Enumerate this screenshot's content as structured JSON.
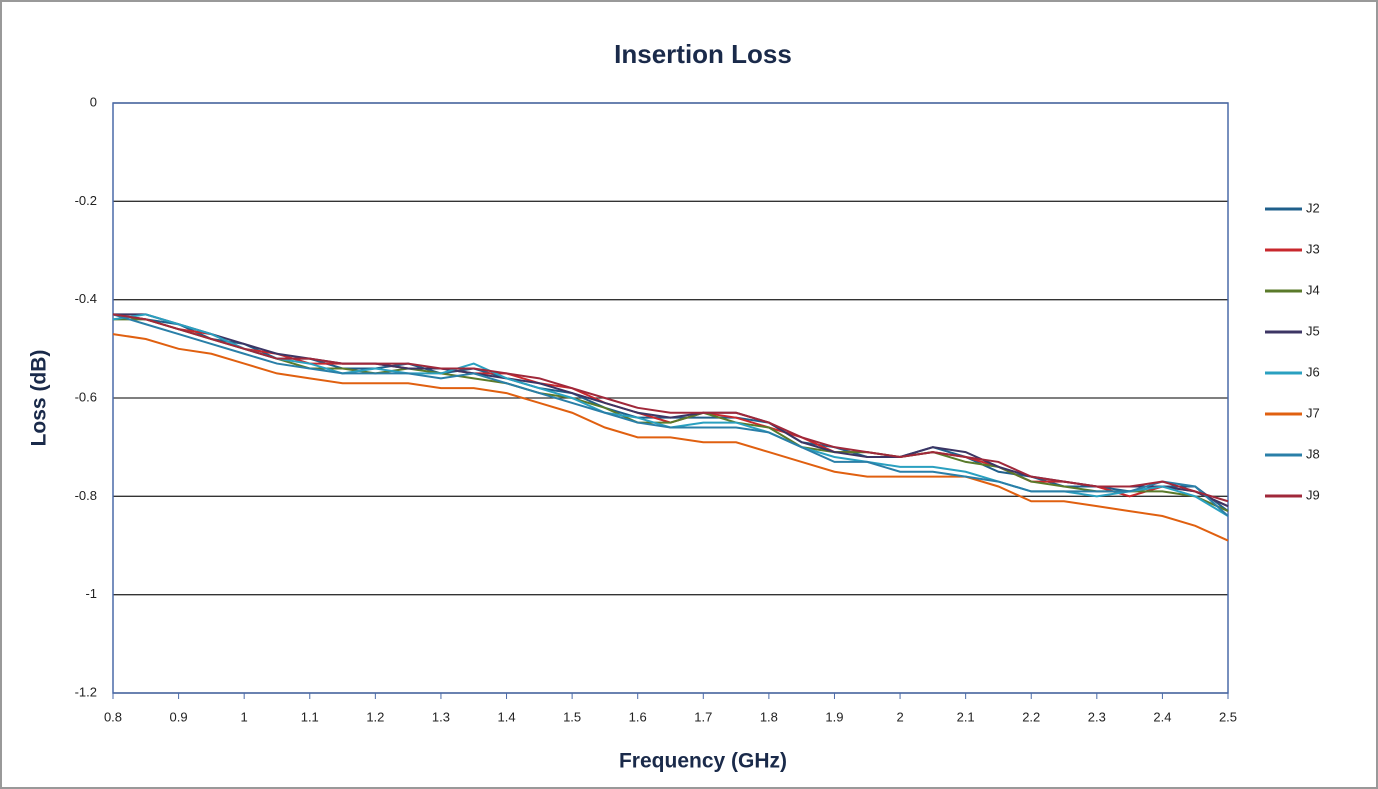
{
  "chart_data": {
    "type": "line",
    "title": "Insertion Loss",
    "x_label": "Frequency (GHz)",
    "y_label": "Loss (dB)",
    "x": [
      0.8,
      0.85,
      0.9,
      0.95,
      1.0,
      1.05,
      1.1,
      1.15,
      1.2,
      1.25,
      1.3,
      1.35,
      1.4,
      1.45,
      1.5,
      1.55,
      1.6,
      1.65,
      1.7,
      1.75,
      1.8,
      1.85,
      1.9,
      1.95,
      2.0,
      2.05,
      2.1,
      2.15,
      2.2,
      2.25,
      2.3,
      2.35,
      2.4,
      2.45,
      2.5
    ],
    "series": [
      {
        "name": "J2",
        "color": "#1f5f8b",
        "values": [
          -0.43,
          -0.44,
          -0.45,
          -0.48,
          -0.49,
          -0.52,
          -0.52,
          -0.54,
          -0.54,
          -0.53,
          -0.55,
          -0.54,
          -0.56,
          -0.58,
          -0.59,
          -0.62,
          -0.64,
          -0.64,
          -0.64,
          -0.64,
          -0.65,
          -0.69,
          -0.7,
          -0.72,
          -0.72,
          -0.7,
          -0.72,
          -0.75,
          -0.76,
          -0.78,
          -0.78,
          -0.79,
          -0.78,
          -0.78,
          -0.83
        ]
      },
      {
        "name": "J3",
        "color": "#c8282d",
        "values": [
          -0.43,
          -0.44,
          -0.46,
          -0.47,
          -0.5,
          -0.51,
          -0.53,
          -0.53,
          -0.53,
          -0.54,
          -0.54,
          -0.55,
          -0.55,
          -0.57,
          -0.58,
          -0.61,
          -0.63,
          -0.65,
          -0.63,
          -0.64,
          -0.66,
          -0.68,
          -0.71,
          -0.71,
          -0.72,
          -0.71,
          -0.72,
          -0.74,
          -0.77,
          -0.77,
          -0.78,
          -0.8,
          -0.78,
          -0.79,
          -0.82
        ]
      },
      {
        "name": "J4",
        "color": "#5a7a2a",
        "values": [
          -0.44,
          -0.44,
          -0.46,
          -0.48,
          -0.5,
          -0.52,
          -0.54,
          -0.54,
          -0.55,
          -0.54,
          -0.55,
          -0.56,
          -0.57,
          -0.59,
          -0.6,
          -0.62,
          -0.65,
          -0.65,
          -0.63,
          -0.65,
          -0.66,
          -0.7,
          -0.71,
          -0.71,
          -0.72,
          -0.71,
          -0.73,
          -0.74,
          -0.77,
          -0.78,
          -0.79,
          -0.79,
          -0.79,
          -0.8,
          -0.83
        ]
      },
      {
        "name": "J5",
        "color": "#3c3564",
        "values": [
          -0.43,
          -0.43,
          -0.45,
          -0.47,
          -0.49,
          -0.51,
          -0.52,
          -0.53,
          -0.53,
          -0.54,
          -0.54,
          -0.55,
          -0.56,
          -0.57,
          -0.59,
          -0.61,
          -0.63,
          -0.64,
          -0.63,
          -0.63,
          -0.65,
          -0.69,
          -0.71,
          -0.72,
          -0.72,
          -0.7,
          -0.71,
          -0.74,
          -0.76,
          -0.77,
          -0.78,
          -0.78,
          -0.78,
          -0.79,
          -0.82
        ]
      },
      {
        "name": "J6",
        "color": "#2aa0c0",
        "values": [
          -0.44,
          -0.43,
          -0.45,
          -0.47,
          -0.5,
          -0.52,
          -0.53,
          -0.55,
          -0.54,
          -0.55,
          -0.55,
          -0.53,
          -0.56,
          -0.58,
          -0.6,
          -0.63,
          -0.64,
          -0.66,
          -0.65,
          -0.65,
          -0.67,
          -0.7,
          -0.72,
          -0.73,
          -0.74,
          -0.74,
          -0.75,
          -0.77,
          -0.79,
          -0.79,
          -0.8,
          -0.79,
          -0.78,
          -0.8,
          -0.84
        ]
      },
      {
        "name": "J7",
        "color": "#e06010",
        "values": [
          -0.47,
          -0.48,
          -0.5,
          -0.51,
          -0.53,
          -0.55,
          -0.56,
          -0.57,
          -0.57,
          -0.57,
          -0.58,
          -0.58,
          -0.59,
          -0.61,
          -0.63,
          -0.66,
          -0.68,
          -0.68,
          -0.69,
          -0.69,
          -0.71,
          -0.73,
          -0.75,
          -0.76,
          -0.76,
          -0.76,
          -0.76,
          -0.78,
          -0.81,
          -0.81,
          -0.82,
          -0.83,
          -0.84,
          -0.86,
          -0.89
        ]
      },
      {
        "name": "J8",
        "color": "#2a7fa8",
        "values": [
          -0.43,
          -0.45,
          -0.47,
          -0.49,
          -0.51,
          -0.53,
          -0.54,
          -0.55,
          -0.55,
          -0.55,
          -0.56,
          -0.55,
          -0.57,
          -0.59,
          -0.61,
          -0.63,
          -0.65,
          -0.66,
          -0.66,
          -0.66,
          -0.67,
          -0.7,
          -0.73,
          -0.73,
          -0.75,
          -0.75,
          -0.76,
          -0.77,
          -0.79,
          -0.79,
          -0.79,
          -0.79,
          -0.77,
          -0.78,
          -0.84
        ]
      },
      {
        "name": "J9",
        "color": "#a0283a",
        "values": [
          -0.43,
          -0.44,
          -0.46,
          -0.48,
          -0.5,
          -0.52,
          -0.52,
          -0.53,
          -0.53,
          -0.53,
          -0.54,
          -0.54,
          -0.55,
          -0.56,
          -0.58,
          -0.6,
          -0.62,
          -0.63,
          -0.63,
          -0.63,
          -0.65,
          -0.68,
          -0.7,
          -0.71,
          -0.72,
          -0.71,
          -0.72,
          -0.73,
          -0.76,
          -0.77,
          -0.78,
          -0.78,
          -0.77,
          -0.79,
          -0.81
        ]
      }
    ],
    "xlim": [
      0.8,
      2.5
    ],
    "xticks": [
      0.8,
      0.9,
      1,
      1.1,
      1.2,
      1.3,
      1.4,
      1.5,
      1.6,
      1.7,
      1.8,
      1.9,
      2,
      2.1,
      2.2,
      2.3,
      2.4,
      2.5
    ],
    "ylim": [
      -1.2,
      0
    ],
    "yticks": [
      0,
      -0.2,
      -0.4,
      -0.6,
      -0.8,
      -1,
      -1.2
    ],
    "grid": true,
    "legend": "right"
  }
}
